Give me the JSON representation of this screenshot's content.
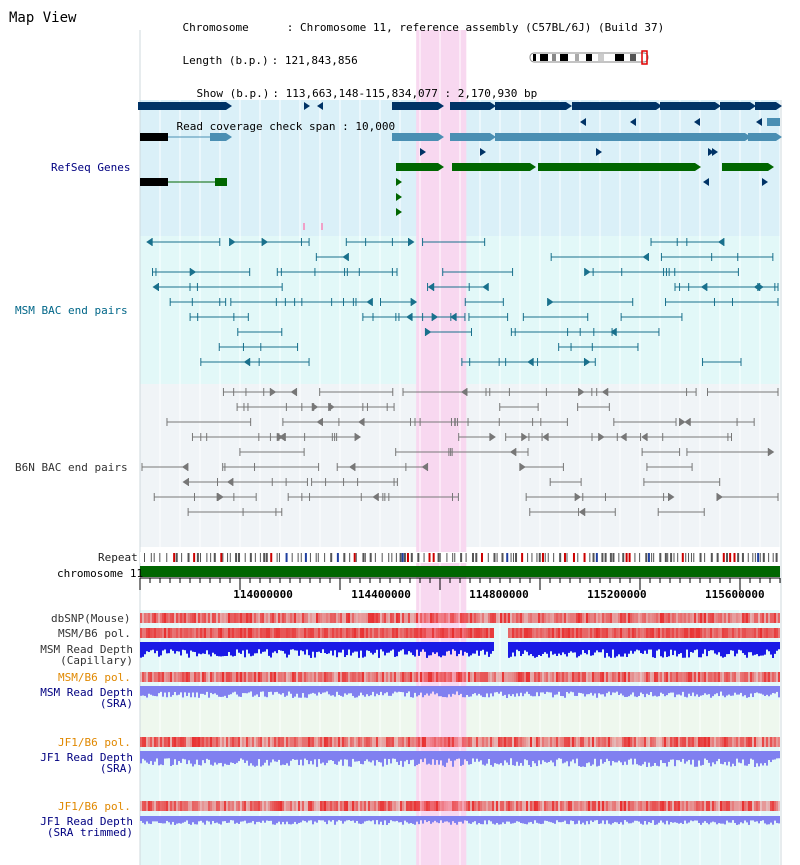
{
  "title": "Map View",
  "header": {
    "lines": [
      {
        "label": "Chromosome",
        "value": "Chromosome 11, reference assembly (C57BL/6J) (Build 37)"
      },
      {
        "label": "Length (b.p.)",
        "value": "121,843,856"
      },
      {
        "label": "Show (b.p.)",
        "value": "113,663,148-115,834,077 : 2,170,930 bp"
      },
      {
        "label": "Read coverage check span",
        "value": "10,000"
      }
    ]
  },
  "tracks": {
    "refseq": "RefSeq Genes",
    "msm_bac": "MSM BAC end pairs",
    "b6n_bac": "B6N BAC end pairs",
    "repeat": "Repeat",
    "chromosome": "chromosome 11",
    "dbsnp": "dbSNP(Mouse)",
    "msm_pol": "MSM/B6 pol.",
    "msm_depth_cap": "MSM Read Depth\n(Capillary)",
    "msm_pol_sra": "MSM/B6 pol.",
    "msm_depth_sra": "MSM Read Depth\n(SRA)",
    "jf1_pol": "JF1/B6 pol.",
    "jf1_depth_sra": "JF1 Read Depth\n(SRA)",
    "jf1_pol_trim": "JF1/B6 pol.",
    "jf1_depth_trim": "JF1 Read Depth\n(SRA trimmed)"
  },
  "axis": {
    "range": [
      113663148,
      115834077
    ],
    "ticks": [
      "114000000",
      "114400000",
      "114800000",
      "115200000",
      "115600000"
    ],
    "highlight": [
      114600000,
      114770000
    ]
  },
  "colors": {
    "refseq_bg": "#daf0f8",
    "msm_bg": "#e2f8f8",
    "b6n_bg": "#f0f4f7",
    "highlight": "#f8d8f0",
    "gene_dark": "#003366",
    "gene_mid": "#4a8fb3",
    "gene_green": "#006600",
    "msm_line": "#19708c",
    "b6n_line": "#777777",
    "label_navy": "#000080",
    "label_teal": "#006688",
    "label_orange": "#e08800",
    "label_dark": "#333333",
    "depth_blue": "#1a1ae6",
    "depth_light": "#8080f0",
    "pol_red": "#e83030"
  }
}
